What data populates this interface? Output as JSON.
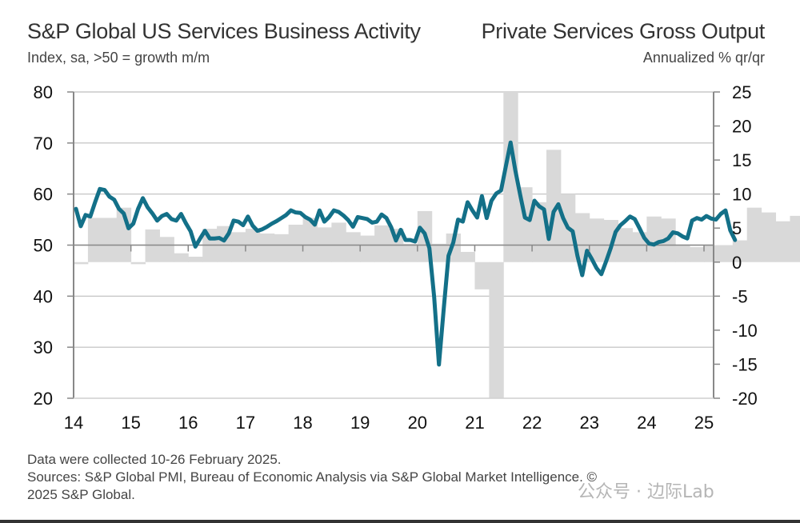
{
  "header": {
    "title_left": "S&P Global US Services Business Activity",
    "subtitle_left": "Index, sa, >50 = growth m/m",
    "title_right": "Private Services Gross Output",
    "subtitle_right": "Annualized % qr/qr"
  },
  "footer": {
    "line1": "Data were collected 10-26 February 2025.",
    "line2": "Sources: S&P Global PMI, Bureau of Economic Analysis via S&P Global Market Intelligence. ©",
    "line3": "2025 S&P Global.",
    "watermark": "公众号 · 边际Lab"
  },
  "colors": {
    "line": "#137088",
    "bars": "#d9d9d9",
    "grid": "#bdbdbd",
    "axis": "#888888"
  },
  "chart_data": {
    "type": "line+bar",
    "title": "S&P Global US Services Business Activity vs Private Services Gross Output",
    "x_ticks": [
      "14",
      "15",
      "16",
      "17",
      "18",
      "19",
      "20",
      "21",
      "22",
      "23",
      "24",
      "25"
    ],
    "left_axis": {
      "label": "Index, sa, >50 = growth m/m",
      "range": [
        20,
        80
      ],
      "ticks": [
        80,
        70,
        60,
        50,
        40,
        30,
        20
      ]
    },
    "right_axis": {
      "label": "Annualized % qr/qr",
      "range": [
        -20,
        25
      ],
      "ticks": [
        25,
        20,
        15,
        10,
        5,
        0,
        -5,
        -10,
        -15,
        -20
      ]
    },
    "grid": true,
    "series": [
      {
        "name": "S&P Global US Services Business Activity Index",
        "type": "line",
        "axis": "left",
        "frequency": "monthly",
        "start": "2014-01",
        "values": [
          57.1,
          53.7,
          55.9,
          55.6,
          58.4,
          61.0,
          60.8,
          59.5,
          58.9,
          57.1,
          56.2,
          53.3,
          54.2,
          57.1,
          59.2,
          57.4,
          56.2,
          54.8,
          55.7,
          56.1,
          55.1,
          54.8,
          56.1,
          54.3,
          52.7,
          49.7,
          51.3,
          52.8,
          51.3,
          51.3,
          51.4,
          50.9,
          52.3,
          54.8,
          54.6,
          53.9,
          55.6,
          53.8,
          52.8,
          53.1,
          53.6,
          54.2,
          54.7,
          55.3,
          55.9,
          56.8,
          56.4,
          56.3,
          55.5,
          55.0,
          54.0,
          56.8,
          54.6,
          55.5,
          56.8,
          56.5,
          55.8,
          54.9,
          53.6,
          55.5,
          55.3,
          55.1,
          54.4,
          54.6,
          56.0,
          55.3,
          53.5,
          50.9,
          53.0,
          51.0,
          51.0,
          50.7,
          53.4,
          52.3,
          49.4,
          39.8,
          26.6,
          37.5,
          47.9,
          50.5,
          55.0,
          54.6,
          58.4,
          56.8,
          55.4,
          59.6,
          55.3,
          58.7,
          60.1,
          60.7,
          65.4,
          70.1,
          64.6,
          59.9,
          55.4,
          54.9,
          58.7,
          57.6,
          57.0,
          51.2,
          56.5,
          58.0,
          55.3,
          53.4,
          52.7,
          47.9,
          44.1,
          48.9,
          47.3,
          45.5,
          44.3,
          46.8,
          49.5,
          52.6,
          53.9,
          54.7,
          55.6,
          55.1,
          53.3,
          51.4,
          50.3,
          50.1,
          50.6,
          50.8,
          51.3,
          52.5,
          52.3,
          51.7,
          51.3,
          54.8,
          55.3,
          55.0,
          55.7,
          55.2,
          55.0,
          56.1,
          56.8,
          52.9,
          51.0
        ]
      },
      {
        "name": "Private Services Gross Output (Annualized % qr/qr)",
        "type": "bar",
        "axis": "right",
        "frequency": "quarterly",
        "start": "2014-Q1",
        "values": [
          -0.3,
          6.5,
          6.5,
          8.0,
          -0.3,
          4.8,
          3.7,
          1.3,
          0.8,
          4.9,
          5.3,
          4.4,
          4.9,
          4.2,
          4.1,
          5.5,
          6.5,
          5.1,
          5.8,
          4.4,
          3.9,
          5.4,
          4.9,
          2.7,
          7.5,
          2.7,
          4.2,
          1.5,
          -4.0,
          -20.0,
          30.0,
          11.0,
          8.8,
          16.5,
          10.0,
          7.2,
          6.4,
          6.2,
          5.0,
          4.4,
          6.7,
          6.4,
          2.4,
          2.2,
          2.5,
          2.5,
          3.2,
          8.0,
          7.3,
          6.0,
          6.8,
          6.8
        ]
      }
    ],
    "legend": "none (titles at top-left and top-right identify axes)"
  }
}
